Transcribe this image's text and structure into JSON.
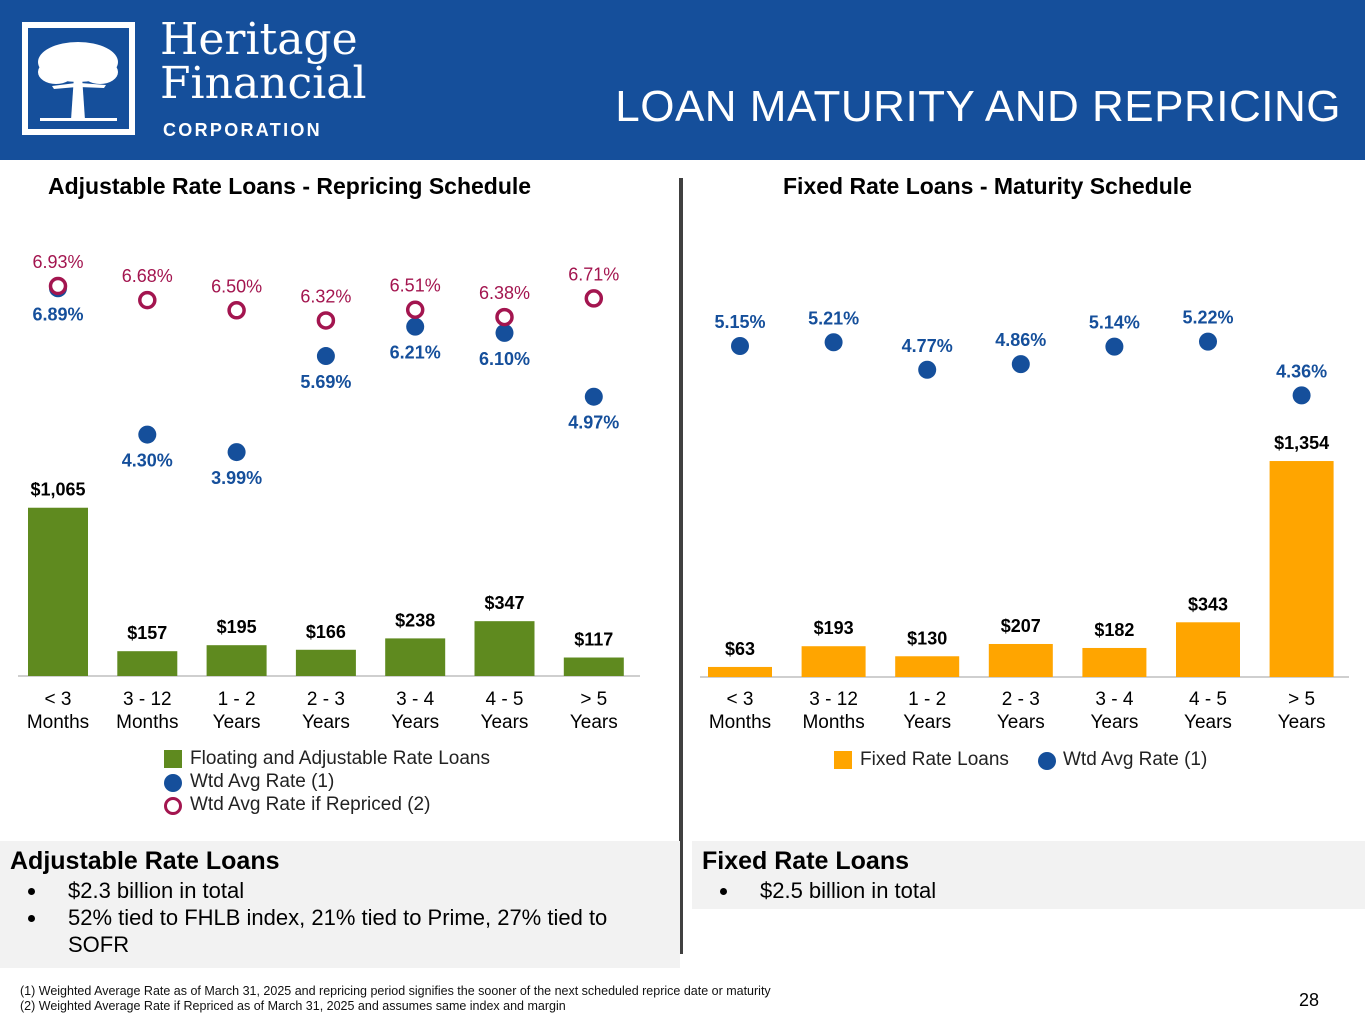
{
  "header": {
    "logo_line1": "Heritage",
    "logo_line2": "Financial",
    "logo_corp": "CORPORATION",
    "title": "LOAN MATURITY AND REPRICING",
    "bg_color": "#154f9b"
  },
  "left_chart": {
    "title": "Adjustable Rate Loans - Repricing Schedule",
    "legend": [
      "Floating and Adjustable Rate Loans",
      "Wtd Avg Rate (1)",
      "Wtd Avg Rate if Repriced (2)"
    ]
  },
  "right_chart": {
    "title": "Fixed Rate Loans - Maturity Schedule",
    "legend": [
      "Fixed Rate Loans",
      "Wtd Avg Rate (1)"
    ]
  },
  "chart_data": [
    {
      "type": "bar",
      "title": "Adjustable Rate Loans - Repricing Schedule",
      "categories": [
        [
          "< 3",
          "Months"
        ],
        [
          "3 - 12",
          "Months"
        ],
        [
          "1 - 2",
          "Years"
        ],
        [
          "2 - 3",
          "Years"
        ],
        [
          "3 - 4",
          "Years"
        ],
        [
          "4 - 5",
          "Years"
        ],
        [
          "> 5",
          "Years"
        ]
      ],
      "series": [
        {
          "name": "Floating and Adjustable Rate Loans",
          "values": [
            1065,
            157,
            195,
            166,
            238,
            347,
            117
          ],
          "labels": [
            "$1,065",
            "$157",
            "$195",
            "$166",
            "$238",
            "$347",
            "$117"
          ],
          "color": "#5f8a1f"
        },
        {
          "name": "Wtd Avg Rate (1)",
          "values": [
            6.89,
            4.3,
            3.99,
            5.69,
            6.21,
            6.1,
            4.97
          ],
          "labels": [
            "6.89%",
            "4.30%",
            "3.99%",
            "5.69%",
            "6.21%",
            "6.10%",
            "4.97%"
          ],
          "color": "#154f9b"
        },
        {
          "name": "Wtd Avg Rate if Repriced (2)",
          "values": [
            6.93,
            6.68,
            6.5,
            6.32,
            6.51,
            6.38,
            6.71
          ],
          "labels": [
            "6.93%",
            "6.68%",
            "6.50%",
            "6.32%",
            "6.51%",
            "6.38%",
            "6.71%"
          ],
          "color": "#a3154f"
        }
      ],
      "ylabel": "",
      "xlabel": ""
    },
    {
      "type": "bar",
      "title": "Fixed Rate Loans - Maturity Schedule",
      "categories": [
        [
          "< 3",
          "Months"
        ],
        [
          "3 - 12",
          "Months"
        ],
        [
          "1 - 2",
          "Years"
        ],
        [
          "2 - 3",
          "Years"
        ],
        [
          "3 - 4",
          "Years"
        ],
        [
          "4 - 5",
          "Years"
        ],
        [
          "> 5",
          "Years"
        ]
      ],
      "series": [
        {
          "name": "Fixed Rate Loans",
          "values": [
            63,
            193,
            130,
            207,
            182,
            343,
            1354
          ],
          "labels": [
            "$63",
            "$193",
            "$130",
            "$207",
            "$182",
            "$343",
            "$1,354"
          ],
          "color": "#ffa500"
        },
        {
          "name": "Wtd Avg Rate (1)",
          "values": [
            5.15,
            5.21,
            4.77,
            4.86,
            5.14,
            5.22,
            4.36
          ],
          "labels": [
            "5.15%",
            "5.21%",
            "4.77%",
            "4.86%",
            "5.14%",
            "5.22%",
            "4.36%"
          ],
          "color": "#154f9b"
        }
      ],
      "ylabel": "",
      "xlabel": ""
    }
  ],
  "adjustable_panel": {
    "title": "Adjustable Rate Loans",
    "bullets": [
      "$2.3 billion in total",
      "52% tied to FHLB index, 21% tied to Prime, 27% tied to SOFR"
    ]
  },
  "fixed_panel": {
    "title": "Fixed Rate Loans",
    "bullets": [
      "$2.5 billion in total"
    ]
  },
  "footnotes": [
    "(1) Weighted Average Rate as of March 31, 2025 and repricing period signifies the sooner of the next scheduled reprice date or maturity",
    "(2) Weighted Average Rate if Repriced as of March 31, 2025 and assumes same index and margin"
  ],
  "page_number": "28"
}
